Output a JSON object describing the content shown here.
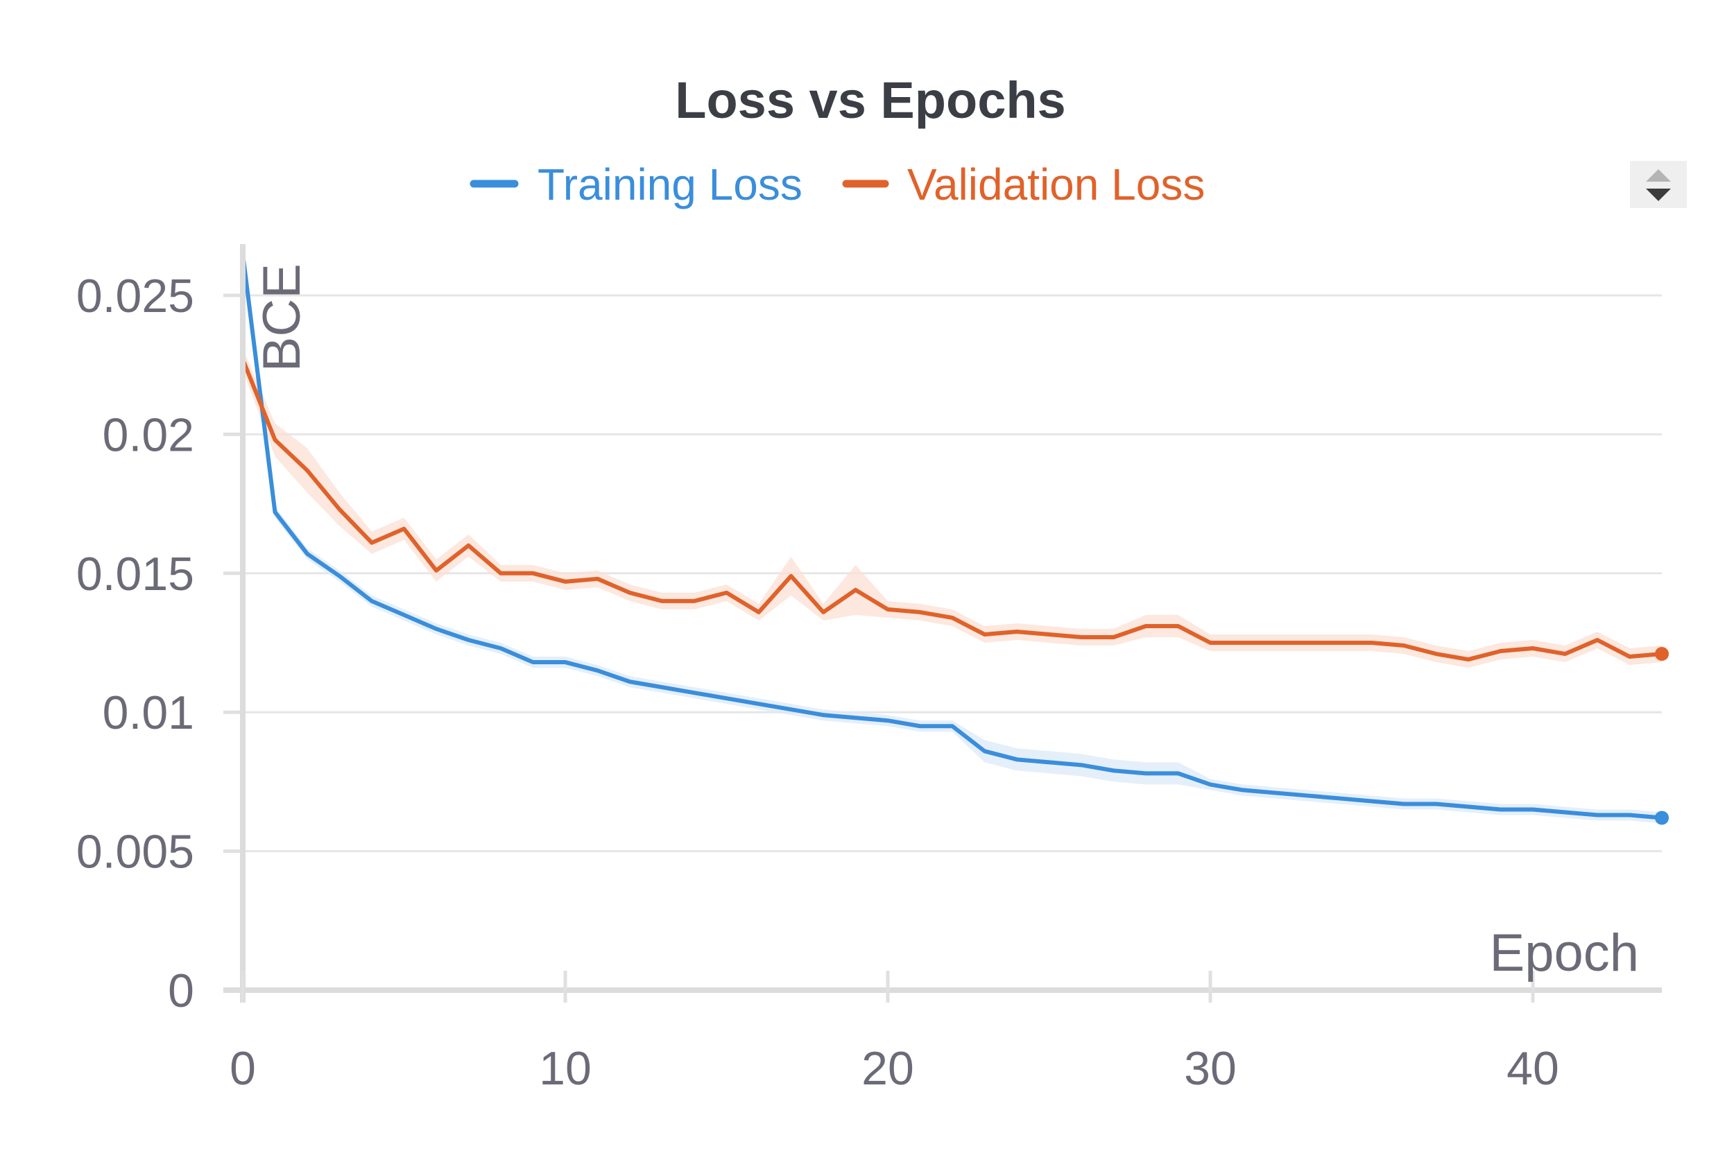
{
  "chart_data": {
    "type": "line",
    "title": "Loss vs Epochs",
    "xlabel": "Epoch",
    "ylabel": "BCE",
    "xlim": [
      0,
      44
    ],
    "ylim": [
      0,
      0.027
    ],
    "x_ticks": [
      0,
      10,
      20,
      30,
      40
    ],
    "x_tick_labels": [
      "0",
      "10",
      "20",
      "30",
      "40"
    ],
    "y_ticks": [
      0,
      0.005,
      0.01,
      0.015,
      0.02,
      0.025
    ],
    "y_tick_labels": [
      "0",
      "0.005",
      "0.01",
      "0.015",
      "0.02",
      "0.025"
    ],
    "grid": "horizontal",
    "legend_position": "top-center",
    "x": [
      0,
      1,
      2,
      3,
      4,
      5,
      6,
      7,
      8,
      9,
      10,
      11,
      12,
      13,
      14,
      15,
      16,
      17,
      18,
      19,
      20,
      21,
      22,
      23,
      24,
      25,
      26,
      27,
      28,
      29,
      30,
      31,
      32,
      33,
      34,
      35,
      36,
      37,
      38,
      39,
      40,
      41,
      42,
      43,
      44
    ],
    "series": [
      {
        "name": "Training Loss",
        "color": "#3a8edb",
        "values": [
          0.0265,
          0.0172,
          0.0157,
          0.0149,
          0.014,
          0.0135,
          0.013,
          0.0126,
          0.0123,
          0.0118,
          0.0118,
          0.0115,
          0.0111,
          0.0109,
          0.0107,
          0.0105,
          0.0103,
          0.0101,
          0.0099,
          0.0098,
          0.0097,
          0.0095,
          0.0095,
          0.0086,
          0.0083,
          0.0082,
          0.0081,
          0.0079,
          0.0078,
          0.0078,
          0.0074,
          0.0072,
          0.0071,
          0.007,
          0.0069,
          0.0068,
          0.0067,
          0.0067,
          0.0066,
          0.0065,
          0.0065,
          0.0064,
          0.0063,
          0.0063,
          0.0062
        ],
        "band_half_width": [
          0.0002,
          0.0002,
          0.0002,
          0.0002,
          0.0002,
          0.0002,
          0.0002,
          0.0002,
          0.0002,
          0.0002,
          0.0002,
          0.0002,
          0.0002,
          0.0002,
          0.0002,
          0.0002,
          0.0002,
          0.0002,
          0.0002,
          0.0002,
          0.0002,
          0.0002,
          0.0002,
          0.0004,
          0.0004,
          0.0004,
          0.0004,
          0.0004,
          0.0004,
          0.0004,
          0.0002,
          0.0002,
          0.0002,
          0.0002,
          0.0002,
          0.0002,
          0.0002,
          0.0002,
          0.0002,
          0.0002,
          0.0002,
          0.0002,
          0.0002,
          0.0002,
          0.0002
        ]
      },
      {
        "name": "Validation Loss",
        "color": "#e0622a",
        "values": [
          0.0227,
          0.0198,
          0.0187,
          0.0173,
          0.0161,
          0.0166,
          0.0151,
          0.016,
          0.015,
          0.015,
          0.0147,
          0.0148,
          0.0143,
          0.014,
          0.014,
          0.0143,
          0.0136,
          0.0149,
          0.0136,
          0.0144,
          0.0137,
          0.0136,
          0.0134,
          0.0128,
          0.0129,
          0.0128,
          0.0127,
          0.0127,
          0.0131,
          0.0131,
          0.0125,
          0.0125,
          0.0125,
          0.0125,
          0.0125,
          0.0125,
          0.0124,
          0.0121,
          0.0119,
          0.0122,
          0.0123,
          0.0121,
          0.0126,
          0.012,
          0.0121
        ],
        "band_half_width": [
          0.0004,
          0.0006,
          0.0008,
          0.0006,
          0.0004,
          0.0004,
          0.0004,
          0.0004,
          0.0003,
          0.0003,
          0.0003,
          0.0003,
          0.0003,
          0.0003,
          0.0003,
          0.0003,
          0.0003,
          0.0007,
          0.0003,
          0.0009,
          0.0003,
          0.0003,
          0.0003,
          0.0003,
          0.0003,
          0.0003,
          0.0003,
          0.0003,
          0.0004,
          0.0004,
          0.0003,
          0.0003,
          0.0003,
          0.0003,
          0.0003,
          0.0003,
          0.0003,
          0.0003,
          0.0003,
          0.0003,
          0.0003,
          0.0003,
          0.0003,
          0.0003,
          0.0003
        ]
      }
    ]
  }
}
